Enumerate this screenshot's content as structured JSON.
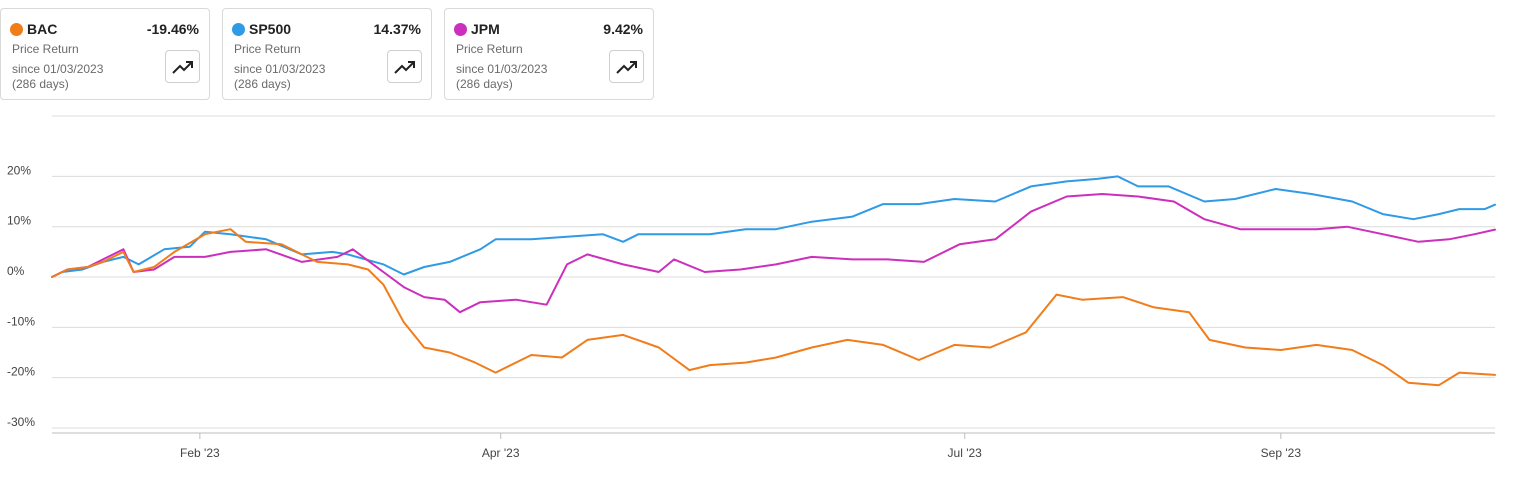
{
  "cards": [
    {
      "ticker": "BAC",
      "return": "-19.46%",
      "line1": "Price Return",
      "line2": "since 01/03/2023",
      "line3": "(286 days)",
      "color": "#f07d1a"
    },
    {
      "ticker": "SP500",
      "return": "14.37%",
      "line1": "Price Return",
      "line2": "since 01/03/2023",
      "line3": "(286 days)",
      "color": "#2f9ae6"
    },
    {
      "ticker": "JPM",
      "return": "9.42%",
      "line1": "Price Return",
      "line2": "since 01/03/2023",
      "line3": "(286 days)",
      "color": "#cc2fbd"
    }
  ],
  "chart_data": {
    "type": "line",
    "title": "",
    "xlabel": "",
    "ylabel": "",
    "x_range": [
      "2023-01-03",
      "2023-10-13"
    ],
    "ylim": [
      -30,
      30
    ],
    "y_ticks": [
      20,
      10,
      0,
      -10,
      -20,
      -30
    ],
    "y_tick_labels": [
      "20%",
      "10%",
      "0%",
      "-10%",
      "-20%",
      "-30%"
    ],
    "x_ticks": [
      {
        "date": "2023-02-01",
        "label": "Feb '23"
      },
      {
        "date": "2023-04-01",
        "label": "Apr '23"
      },
      {
        "date": "2023-07-01",
        "label": "Jul '23"
      },
      {
        "date": "2023-09-01",
        "label": "Sep '23"
      }
    ],
    "grid": "horizontal",
    "legend": "top-left cards",
    "series": [
      {
        "name": "SP500",
        "color": "#2f9ae6",
        "points": [
          [
            "2023-01-03",
            0.0
          ],
          [
            "2023-01-05",
            1.0
          ],
          [
            "2023-01-09",
            1.5
          ],
          [
            "2023-01-13",
            3.0
          ],
          [
            "2023-01-17",
            4.0
          ],
          [
            "2023-01-20",
            2.5
          ],
          [
            "2023-01-25",
            5.5
          ],
          [
            "2023-01-30",
            6.0
          ],
          [
            "2023-02-02",
            9.0
          ],
          [
            "2023-02-07",
            8.5
          ],
          [
            "2023-02-14",
            7.5
          ],
          [
            "2023-02-21",
            4.5
          ],
          [
            "2023-02-27",
            5.0
          ],
          [
            "2023-03-02",
            4.5
          ],
          [
            "2023-03-09",
            2.5
          ],
          [
            "2023-03-13",
            0.5
          ],
          [
            "2023-03-17",
            2.0
          ],
          [
            "2023-03-22",
            3.0
          ],
          [
            "2023-03-28",
            5.5
          ],
          [
            "2023-03-31",
            7.5
          ],
          [
            "2023-04-07",
            7.5
          ],
          [
            "2023-04-14",
            8.0
          ],
          [
            "2023-04-21",
            8.5
          ],
          [
            "2023-04-25",
            7.0
          ],
          [
            "2023-04-28",
            8.5
          ],
          [
            "2023-05-05",
            8.5
          ],
          [
            "2023-05-12",
            8.5
          ],
          [
            "2023-05-19",
            9.5
          ],
          [
            "2023-05-25",
            9.5
          ],
          [
            "2023-06-01",
            11.0
          ],
          [
            "2023-06-09",
            12.0
          ],
          [
            "2023-06-15",
            14.5
          ],
          [
            "2023-06-22",
            14.5
          ],
          [
            "2023-06-29",
            15.5
          ],
          [
            "2023-07-07",
            15.0
          ],
          [
            "2023-07-14",
            18.0
          ],
          [
            "2023-07-21",
            19.0
          ],
          [
            "2023-07-27",
            19.5
          ],
          [
            "2023-07-31",
            20.0
          ],
          [
            "2023-08-04",
            18.0
          ],
          [
            "2023-08-10",
            18.0
          ],
          [
            "2023-08-17",
            15.0
          ],
          [
            "2023-08-23",
            15.5
          ],
          [
            "2023-08-31",
            17.5
          ],
          [
            "2023-09-07",
            16.5
          ],
          [
            "2023-09-15",
            15.0
          ],
          [
            "2023-09-21",
            12.5
          ],
          [
            "2023-09-27",
            11.5
          ],
          [
            "2023-10-02",
            12.5
          ],
          [
            "2023-10-06",
            13.5
          ],
          [
            "2023-10-11",
            13.5
          ],
          [
            "2023-10-13",
            14.37
          ]
        ]
      },
      {
        "name": "JPM",
        "color": "#cc2fbd",
        "points": [
          [
            "2023-01-03",
            0.0
          ],
          [
            "2023-01-06",
            1.5
          ],
          [
            "2023-01-10",
            2.0
          ],
          [
            "2023-01-13",
            3.5
          ],
          [
            "2023-01-17",
            5.5
          ],
          [
            "2023-01-19",
            1.0
          ],
          [
            "2023-01-23",
            1.5
          ],
          [
            "2023-01-27",
            4.0
          ],
          [
            "2023-02-02",
            4.0
          ],
          [
            "2023-02-07",
            5.0
          ],
          [
            "2023-02-14",
            5.5
          ],
          [
            "2023-02-21",
            3.0
          ],
          [
            "2023-02-28",
            4.0
          ],
          [
            "2023-03-03",
            5.5
          ],
          [
            "2023-03-09",
            1.0
          ],
          [
            "2023-03-13",
            -2.0
          ],
          [
            "2023-03-17",
            -4.0
          ],
          [
            "2023-03-21",
            -4.5
          ],
          [
            "2023-03-24",
            -7.0
          ],
          [
            "2023-03-28",
            -5.0
          ],
          [
            "2023-04-04",
            -4.5
          ],
          [
            "2023-04-10",
            -5.5
          ],
          [
            "2023-04-14",
            2.5
          ],
          [
            "2023-04-18",
            4.5
          ],
          [
            "2023-04-25",
            2.5
          ],
          [
            "2023-05-02",
            1.0
          ],
          [
            "2023-05-05",
            3.5
          ],
          [
            "2023-05-11",
            1.0
          ],
          [
            "2023-05-18",
            1.5
          ],
          [
            "2023-05-25",
            2.5
          ],
          [
            "2023-06-01",
            4.0
          ],
          [
            "2023-06-09",
            3.5
          ],
          [
            "2023-06-16",
            3.5
          ],
          [
            "2023-06-23",
            3.0
          ],
          [
            "2023-06-30",
            6.5
          ],
          [
            "2023-07-07",
            7.5
          ],
          [
            "2023-07-14",
            13.0
          ],
          [
            "2023-07-21",
            16.0
          ],
          [
            "2023-07-28",
            16.5
          ],
          [
            "2023-08-04",
            16.0
          ],
          [
            "2023-08-11",
            15.0
          ],
          [
            "2023-08-17",
            11.5
          ],
          [
            "2023-08-24",
            9.5
          ],
          [
            "2023-08-31",
            9.5
          ],
          [
            "2023-09-08",
            9.5
          ],
          [
            "2023-09-14",
            10.0
          ],
          [
            "2023-09-21",
            8.5
          ],
          [
            "2023-09-28",
            7.0
          ],
          [
            "2023-10-04",
            7.5
          ],
          [
            "2023-10-09",
            8.5
          ],
          [
            "2023-10-13",
            9.42
          ]
        ]
      },
      {
        "name": "BAC",
        "color": "#f07d1a",
        "points": [
          [
            "2023-01-03",
            0.0
          ],
          [
            "2023-01-06",
            1.5
          ],
          [
            "2023-01-10",
            2.0
          ],
          [
            "2023-01-13",
            3.0
          ],
          [
            "2023-01-17",
            5.0
          ],
          [
            "2023-01-19",
            1.0
          ],
          [
            "2023-01-23",
            2.0
          ],
          [
            "2023-01-27",
            5.0
          ],
          [
            "2023-02-02",
            8.5
          ],
          [
            "2023-02-07",
            9.5
          ],
          [
            "2023-02-10",
            7.0
          ],
          [
            "2023-02-17",
            6.5
          ],
          [
            "2023-02-24",
            3.0
          ],
          [
            "2023-03-02",
            2.5
          ],
          [
            "2023-03-06",
            1.5
          ],
          [
            "2023-03-09",
            -1.5
          ],
          [
            "2023-03-13",
            -9.0
          ],
          [
            "2023-03-17",
            -14.0
          ],
          [
            "2023-03-22",
            -15.0
          ],
          [
            "2023-03-27",
            -17.0
          ],
          [
            "2023-03-31",
            -19.0
          ],
          [
            "2023-04-07",
            -15.5
          ],
          [
            "2023-04-13",
            -16.0
          ],
          [
            "2023-04-18",
            -12.5
          ],
          [
            "2023-04-25",
            -11.5
          ],
          [
            "2023-05-02",
            -14.0
          ],
          [
            "2023-05-08",
            -18.5
          ],
          [
            "2023-05-12",
            -17.5
          ],
          [
            "2023-05-19",
            -17.0
          ],
          [
            "2023-05-25",
            -16.0
          ],
          [
            "2023-06-01",
            -14.0
          ],
          [
            "2023-06-08",
            -12.5
          ],
          [
            "2023-06-15",
            -13.5
          ],
          [
            "2023-06-22",
            -16.5
          ],
          [
            "2023-06-29",
            -13.5
          ],
          [
            "2023-07-06",
            -14.0
          ],
          [
            "2023-07-13",
            -11.0
          ],
          [
            "2023-07-19",
            -3.5
          ],
          [
            "2023-07-24",
            -4.5
          ],
          [
            "2023-08-01",
            -4.0
          ],
          [
            "2023-08-07",
            -6.0
          ],
          [
            "2023-08-14",
            -7.0
          ],
          [
            "2023-08-18",
            -12.5
          ],
          [
            "2023-08-25",
            -14.0
          ],
          [
            "2023-09-01",
            -14.5
          ],
          [
            "2023-09-08",
            -13.5
          ],
          [
            "2023-09-15",
            -14.5
          ],
          [
            "2023-09-21",
            -17.5
          ],
          [
            "2023-09-26",
            -21.0
          ],
          [
            "2023-10-02",
            -21.5
          ],
          [
            "2023-10-06",
            -19.0
          ],
          [
            "2023-10-13",
            -19.46
          ]
        ]
      }
    ]
  }
}
